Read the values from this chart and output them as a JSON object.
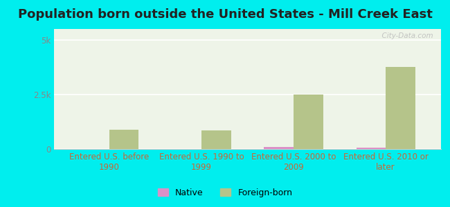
{
  "title": "Population born outside the United States - Mill Creek East",
  "categories": [
    "Entered U.S. before\n1990",
    "Entered U.S. 1990 to\n1999",
    "Entered U.S. 2000 to\n2009",
    "Entered U.S. 2010 or\nlater"
  ],
  "native_values": [
    5,
    5,
    110,
    75
  ],
  "foreign_values": [
    900,
    850,
    2500,
    3750
  ],
  "native_color": "#d991c7",
  "foreign_color": "#b5c48a",
  "plot_bg_color": "#eef4e8",
  "outer_bg_color": "#00eeee",
  "ylim": [
    0,
    5500
  ],
  "yticks": [
    0,
    2500,
    5000
  ],
  "ytick_labels": [
    "0",
    "2.5k",
    "5k"
  ],
  "ylabel_color": "#888888",
  "xlabel_color": "#cc6633",
  "grid_color": "#ffffff",
  "watermark": "  City-Data.com",
  "legend_native": "Native",
  "legend_foreign": "Foreign-born",
  "bar_width": 0.32,
  "title_fontsize": 13,
  "tick_fontsize": 8.5,
  "legend_fontsize": 9
}
